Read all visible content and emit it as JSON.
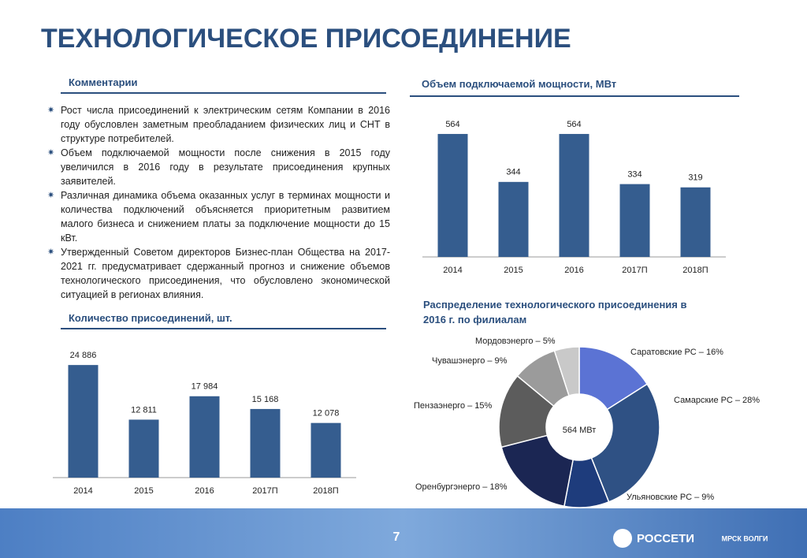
{
  "title": "ТЕХНОЛОГИЧЕСКОЕ ПРИСОЕДИНЕНИЕ",
  "comments": {
    "heading": "Комментарии",
    "items": [
      "Рост числа присоединений к электрическим сетям Компании в 2016 году обусловлен заметным преобладанием физических лиц и СНТ в структуре потребителей.",
      "Объем подключаемой мощности после снижения в 2015 году увеличился в 2016 году в результате присоединения крупных заявителей.",
      "Различная динамика объема оказанных услуг в терминах мощности и количества подключений объясняется приоритетным развитием малого бизнеса и снижением платы за подключение мощности до 15 кВт.",
      "Утвержденный Советом директоров Бизнес-план Общества на 2017-2021 гг. предусматривает сдержанный прогноз и снижение объемов технологического присоединения, что обусловлено экономической ситуацией в регионах влияния."
    ]
  },
  "chart_data": [
    {
      "type": "bar",
      "title": "Объем подключаемой мощности, МВт",
      "categories": [
        "2014",
        "2015",
        "2016",
        "2017П",
        "2018П"
      ],
      "values": [
        564,
        344,
        564,
        334,
        319
      ],
      "color": "#355d8f",
      "ylim": [
        0,
        600
      ]
    },
    {
      "type": "bar",
      "title": "Количество присоединений, шт.",
      "categories": [
        "2014",
        "2015",
        "2016",
        "2017П",
        "2018П"
      ],
      "values": [
        24886,
        12811,
        17984,
        15168,
        12078
      ],
      "value_labels": [
        "24 886",
        "12 811",
        "17 984",
        "15 168",
        "12 078"
      ],
      "color": "#355d8f",
      "ylim": [
        0,
        27000
      ]
    },
    {
      "type": "donut",
      "title": "Распределение технологического присоединения в 2016 г. по филиалам",
      "values": [
        16,
        28,
        9,
        18,
        15,
        9,
        5
      ],
      "value_labels": [
        "Саратовские РС – 16%",
        "Самарские РС – 28%",
        "Ульяновские РС – 9%",
        "Оренбургэнерго – 18%",
        "Пензаэнерго – 15%",
        "Чувашэнерго – 9%",
        "Мордовэнерго – 5%"
      ],
      "colors": [
        "#5b73d4",
        "#2f5184",
        "#1e3c7c",
        "#1b2653",
        "#5c5c5c",
        "#9b9b9b",
        "#c9c9c9"
      ],
      "center_label": "564 МВт"
    }
  ],
  "footer": {
    "page": "7",
    "logo": "РОССЕТИ",
    "logo2": "МРСК ВОЛГИ"
  }
}
